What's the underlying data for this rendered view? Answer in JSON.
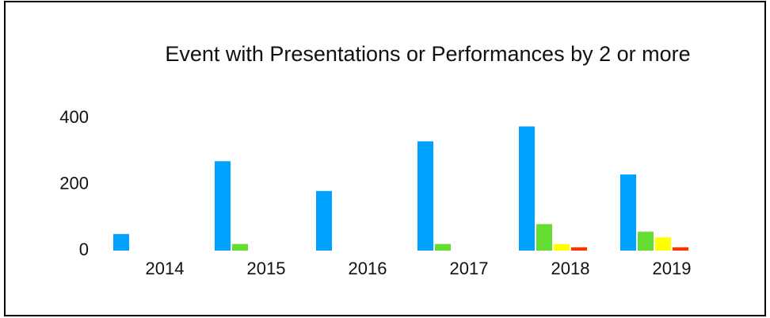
{
  "chart_data": {
    "type": "bar",
    "title": "Event with Presentations or Performances by 2 or more",
    "categories": [
      "2014",
      "2015",
      "2016",
      "2017",
      "2018",
      "2019"
    ],
    "series": [
      {
        "color": "#00a2ff",
        "values": [
          50,
          270,
          180,
          330,
          375,
          230
        ]
      },
      {
        "color": "#66dd33",
        "values": [
          0,
          20,
          0,
          20,
          80,
          57
        ]
      },
      {
        "color": "#ffff00",
        "values": [
          0,
          0,
          0,
          0,
          20,
          40
        ]
      },
      {
        "color": "#ff3300",
        "values": [
          0,
          0,
          0,
          0,
          10,
          10
        ]
      }
    ],
    "ylim": [
      0,
      400
    ],
    "yticks": [
      0,
      200,
      400
    ],
    "grid": false
  }
}
